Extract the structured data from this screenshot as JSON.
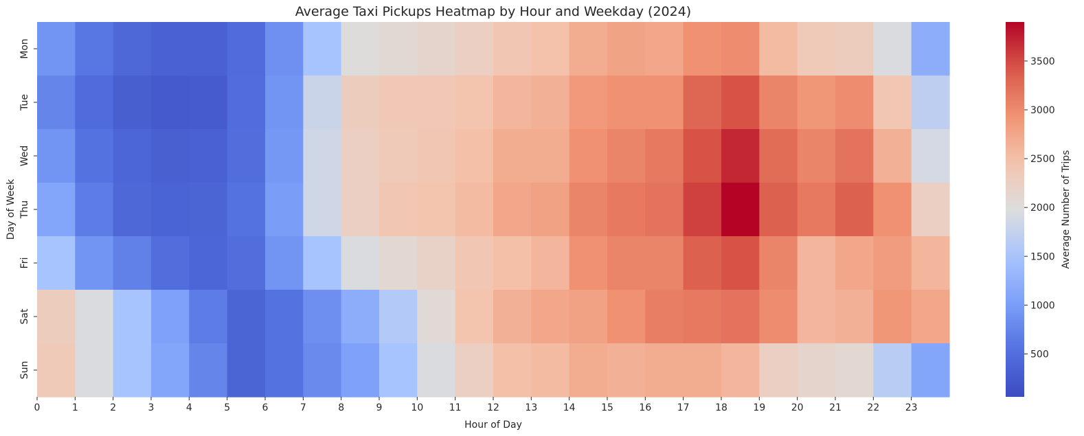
{
  "chart_data": {
    "type": "heatmap",
    "title": "Average Taxi Pickups Heatmap by Hour and Weekday (2024)",
    "xlabel": "Hour of Day",
    "ylabel": "Day of Week",
    "x_ticks": [
      "0",
      "1",
      "2",
      "3",
      "4",
      "5",
      "6",
      "7",
      "8",
      "9",
      "10",
      "11",
      "12",
      "13",
      "14",
      "15",
      "16",
      "17",
      "18",
      "19",
      "20",
      "21",
      "22",
      "23"
    ],
    "y_categories": [
      "Mon",
      "Tue",
      "Wed",
      "Thu",
      "Fri",
      "Sat",
      "Sun"
    ],
    "colormap": "coolwarm",
    "colorbar": {
      "label": "Average Number of Trips",
      "vmin": 60,
      "vmax": 3900,
      "ticks": [
        500,
        1000,
        1500,
        2000,
        2500,
        3000,
        3500
      ]
    },
    "values": [
      [
        900,
        600,
        420,
        330,
        330,
        460,
        860,
        1500,
        2000,
        2080,
        2150,
        2250,
        2400,
        2480,
        2700,
        2780,
        2750,
        2950,
        3000,
        2550,
        2350,
        2300,
        1950,
        1200
      ],
      [
        750,
        460,
        300,
        250,
        270,
        480,
        900,
        1800,
        2300,
        2380,
        2380,
        2450,
        2600,
        2650,
        2880,
        2950,
        2950,
        3300,
        3450,
        3050,
        2900,
        3000,
        2400,
        1700
      ],
      [
        900,
        550,
        400,
        320,
        330,
        500,
        950,
        1850,
        2250,
        2350,
        2400,
        2500,
        2700,
        2700,
        2950,
        3050,
        3150,
        3450,
        3700,
        3250,
        3050,
        3200,
        2650,
        1900
      ],
      [
        1100,
        650,
        420,
        370,
        380,
        550,
        1000,
        1850,
        2250,
        2400,
        2450,
        2550,
        2750,
        2800,
        3050,
        3150,
        3200,
        3550,
        3900,
        3350,
        3150,
        3350,
        2950,
        2250
      ],
      [
        1500,
        900,
        700,
        500,
        400,
        500,
        900,
        1500,
        1950,
        2100,
        2200,
        2400,
        2500,
        2600,
        2950,
        3050,
        3050,
        3350,
        3450,
        3050,
        2600,
        2750,
        2850,
        2600
      ],
      [
        2300,
        1950,
        1500,
        1050,
        650,
        380,
        550,
        850,
        1200,
        1600,
        2050,
        2450,
        2650,
        2750,
        2800,
        2950,
        3100,
        3150,
        3200,
        3000,
        2600,
        2650,
        2900,
        2750
      ],
      [
        2350,
        1950,
        1500,
        1100,
        750,
        380,
        550,
        800,
        1050,
        1500,
        1950,
        2250,
        2500,
        2550,
        2700,
        2650,
        2700,
        2700,
        2600,
        2250,
        2150,
        2100,
        1650,
        1100
      ]
    ]
  }
}
